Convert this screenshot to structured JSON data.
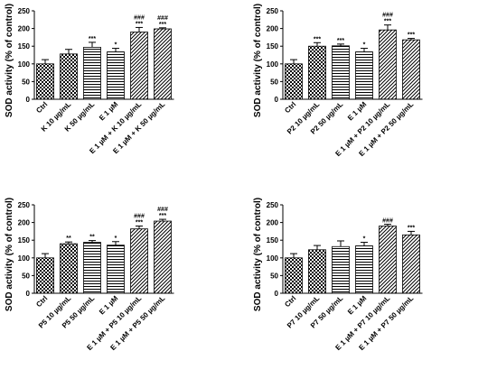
{
  "chart_data": [
    {
      "type": "bar",
      "ylabel": "SOD activity (% of control)",
      "ylim": [
        0,
        250
      ],
      "yticks": [
        0,
        50,
        100,
        150,
        200,
        250
      ],
      "categories": [
        "Ctrl",
        "K 10 µg/mL",
        "K 50 µg/mL",
        "E 1 µM",
        "E 1 µM + K 10 µg/mL",
        "E 1 µM + K 50 µg/mL"
      ],
      "values": [
        100,
        128,
        147,
        134,
        190,
        199
      ],
      "errors": [
        12,
        13,
        14,
        10,
        13,
        3
      ],
      "patterns": [
        "check",
        "check",
        "hline",
        "hline",
        "diag",
        "diag"
      ],
      "significance": [
        "",
        "",
        "***",
        "*",
        "***",
        "***"
      ],
      "significance_vs_E": [
        "",
        "",
        "",
        "",
        "###",
        "###"
      ]
    },
    {
      "type": "bar",
      "ylabel": "SOD activity (% of control)",
      "ylim": [
        0,
        250
      ],
      "yticks": [
        0,
        50,
        100,
        150,
        200,
        250
      ],
      "categories": [
        "Ctrl",
        "P2 10 µg/mL",
        "P2 50 µg/mL",
        "E 1 µM",
        "E 1 µM + P2 10 µg/mL",
        "E 1 µM + P2 50 µg/mL"
      ],
      "values": [
        100,
        150,
        151,
        134,
        196,
        168
      ],
      "errors": [
        12,
        10,
        5,
        10,
        14,
        4
      ],
      "patterns": [
        "check",
        "check",
        "hline",
        "hline",
        "diag",
        "diag"
      ],
      "significance": [
        "",
        "***",
        "***",
        "*",
        "***",
        "***"
      ],
      "significance_vs_E": [
        "",
        "",
        "",
        "",
        "###",
        ""
      ]
    },
    {
      "type": "bar",
      "ylabel": "SOD activity (% of control)",
      "ylim": [
        0,
        250
      ],
      "yticks": [
        0,
        50,
        100,
        150,
        200,
        250
      ],
      "categories": [
        "Ctrl",
        "P5 10 µg/mL",
        "P5 50 µg/mL",
        "E 1 µM",
        "E 1 µM + P5 10 µg/mL",
        "E 1 µM + P5 50 µg/mL"
      ],
      "values": [
        100,
        140,
        144,
        136,
        182,
        204
      ],
      "errors": [
        12,
        5,
        5,
        10,
        8,
        5
      ],
      "patterns": [
        "check",
        "check",
        "hline",
        "hline",
        "diag",
        "diag"
      ],
      "significance": [
        "",
        "**",
        "**",
        "*",
        "***",
        "***"
      ],
      "significance_vs_E": [
        "",
        "",
        "",
        "",
        "###",
        "###"
      ]
    },
    {
      "type": "bar",
      "ylabel": "SOD activity (% of control)",
      "ylim": [
        0,
        250
      ],
      "yticks": [
        0,
        50,
        100,
        150,
        200,
        250
      ],
      "categories": [
        "Ctrl",
        "P7 10 µg/mL",
        "P7 50 µg/mL",
        "E 1 µM",
        "E 1 µM + P7 10 µg/mL",
        "E 1 µM + P7 50 µg/mL"
      ],
      "values": [
        100,
        123,
        132,
        134,
        190,
        165
      ],
      "errors": [
        12,
        12,
        16,
        10,
        5,
        10
      ],
      "patterns": [
        "check",
        "check",
        "hline",
        "hline",
        "diag",
        "diag"
      ],
      "significance": [
        "",
        "",
        "",
        "*",
        "",
        "***"
      ],
      "significance_vs_E": [
        "",
        "",
        "",
        "",
        "###",
        ""
      ]
    }
  ]
}
